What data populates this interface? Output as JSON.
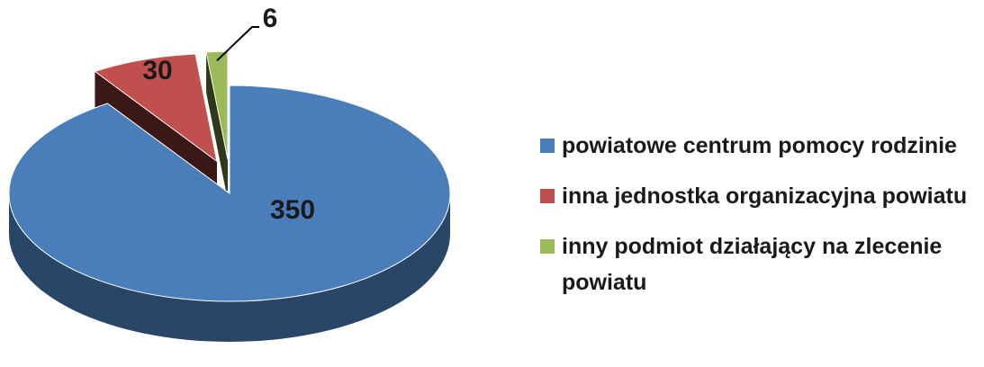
{
  "chart_data": {
    "type": "pie",
    "categories": [
      "powiatowe centrum pomocy rodzinie",
      "inna jednostka organizacyjna powiatu",
      "inny podmiot  działający na zlecenie powiatu"
    ],
    "values": [
      350,
      30,
      6
    ],
    "colors": [
      "#4a7ebb",
      "#c0504d",
      "#9bbb59"
    ],
    "legend": "right"
  }
}
